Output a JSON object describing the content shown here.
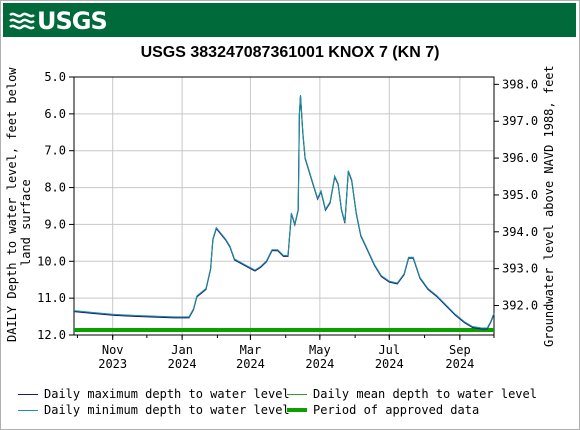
{
  "header": {
    "agency_logo": "USGS",
    "logo_icon": "usgs-wave-icon",
    "banner_color": "#006a3a"
  },
  "chart_data": {
    "type": "line",
    "title": "USGS 383247087361001 KNOX 7 (KN 7)",
    "ylabel": "DAILY Depth to water level, feet below land surface",
    "ylabel_line1": "DAILY Depth to water level, feet below",
    "ylabel_line2": "land surface",
    "y2label": "Groundwater level above NAVD 1988, feet",
    "ylim": [
      12.0,
      5.0
    ],
    "y_inverted": true,
    "yticks": [
      "5.0",
      "6.0",
      "7.0",
      "8.0",
      "9.0",
      "10.0",
      "11.0",
      "12.0"
    ],
    "y2lim": [
      391.2,
      398.2
    ],
    "y2ticks": [
      "398.0",
      "397.0",
      "396.0",
      "395.0",
      "394.0",
      "393.0",
      "392.0"
    ],
    "xlim": [
      "2023-09-28",
      "2024-10-01"
    ],
    "xticks": [
      {
        "date": "2023-11-01",
        "label": "Nov",
        "year": "2023"
      },
      {
        "date": "2024-01-01",
        "label": "Jan",
        "year": "2024"
      },
      {
        "date": "2024-03-01",
        "label": "Mar",
        "year": "2024"
      },
      {
        "date": "2024-05-01",
        "label": "May",
        "year": "2024"
      },
      {
        "date": "2024-07-01",
        "label": "Jul",
        "year": "2024"
      },
      {
        "date": "2024-09-01",
        "label": "Sep",
        "year": "2024"
      }
    ],
    "grid": true,
    "series": [
      {
        "name": "Daily maximum depth to water level",
        "color": "#1a1a7a"
      },
      {
        "name": "Daily minimum depth to water level",
        "color": "#1f8fa8"
      },
      {
        "name": "Daily mean depth to water level",
        "color": "#2ca02c"
      }
    ],
    "approved_period": {
      "name": "Period of approved data",
      "color": "#0aa000",
      "start": "2023-09-28",
      "end": "2024-10-01"
    },
    "points": [
      [
        "2023-09-28",
        11.35
      ],
      [
        "2023-10-15",
        11.4
      ],
      [
        "2023-11-01",
        11.45
      ],
      [
        "2023-11-20",
        11.48
      ],
      [
        "2023-12-10",
        11.5
      ],
      [
        "2023-12-25",
        11.52
      ],
      [
        "2024-01-07",
        11.52
      ],
      [
        "2024-01-11",
        11.3
      ],
      [
        "2024-01-14",
        10.95
      ],
      [
        "2024-01-18",
        10.85
      ],
      [
        "2024-01-22",
        10.75
      ],
      [
        "2024-01-26",
        10.2
      ],
      [
        "2024-01-28",
        9.4
      ],
      [
        "2024-01-31",
        9.1
      ],
      [
        "2024-02-04",
        9.25
      ],
      [
        "2024-02-08",
        9.4
      ],
      [
        "2024-02-12",
        9.6
      ],
      [
        "2024-02-16",
        9.95
      ],
      [
        "2024-02-22",
        10.05
      ],
      [
        "2024-02-28",
        10.15
      ],
      [
        "2024-03-05",
        10.25
      ],
      [
        "2024-03-10",
        10.15
      ],
      [
        "2024-03-15",
        10.0
      ],
      [
        "2024-03-20",
        9.7
      ],
      [
        "2024-03-25",
        9.7
      ],
      [
        "2024-03-30",
        9.85
      ],
      [
        "2024-04-03",
        9.85
      ],
      [
        "2024-04-06",
        8.7
      ],
      [
        "2024-04-09",
        9.0
      ],
      [
        "2024-04-12",
        8.6
      ],
      [
        "2024-04-13",
        6.0
      ],
      [
        "2024-04-14",
        5.5
      ],
      [
        "2024-04-16",
        6.5
      ],
      [
        "2024-04-18",
        7.2
      ],
      [
        "2024-04-21",
        7.5
      ],
      [
        "2024-04-25",
        7.9
      ],
      [
        "2024-04-29",
        8.3
      ],
      [
        "2024-05-02",
        8.1
      ],
      [
        "2024-05-06",
        8.6
      ],
      [
        "2024-05-10",
        8.4
      ],
      [
        "2024-05-14",
        7.7
      ],
      [
        "2024-05-17",
        7.9
      ],
      [
        "2024-05-20",
        8.6
      ],
      [
        "2024-05-23",
        8.95
      ],
      [
        "2024-05-26",
        7.55
      ],
      [
        "2024-05-29",
        7.8
      ],
      [
        "2024-06-02",
        8.7
      ],
      [
        "2024-06-06",
        9.3
      ],
      [
        "2024-06-12",
        9.7
      ],
      [
        "2024-06-18",
        10.1
      ],
      [
        "2024-06-24",
        10.4
      ],
      [
        "2024-07-01",
        10.55
      ],
      [
        "2024-07-08",
        10.6
      ],
      [
        "2024-07-14",
        10.35
      ],
      [
        "2024-07-18",
        9.9
      ],
      [
        "2024-07-22",
        9.9
      ],
      [
        "2024-07-28",
        10.45
      ],
      [
        "2024-08-04",
        10.75
      ],
      [
        "2024-08-12",
        10.95
      ],
      [
        "2024-08-20",
        11.2
      ],
      [
        "2024-08-28",
        11.45
      ],
      [
        "2024-09-05",
        11.65
      ],
      [
        "2024-09-12",
        11.78
      ],
      [
        "2024-09-20",
        11.82
      ],
      [
        "2024-09-25",
        11.82
      ],
      [
        "2024-09-28",
        11.65
      ],
      [
        "2024-10-01",
        11.42
      ]
    ]
  },
  "legend": {
    "items": [
      {
        "label": "Daily maximum depth to water level",
        "color": "#1a1a7a"
      },
      {
        "label": "Daily mean depth to water level",
        "color": "#2ca02c"
      },
      {
        "label": "Daily minimum depth to water level",
        "color": "#1f8fa8"
      },
      {
        "label": "Period of approved data",
        "color": "#0aa000"
      }
    ]
  }
}
